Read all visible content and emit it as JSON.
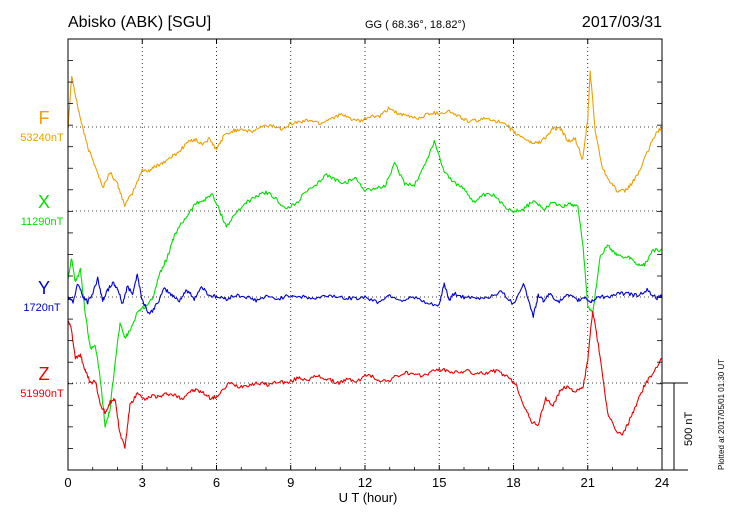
{
  "header": {
    "station": "Abisko (ABK)  [SGU]",
    "coords": "GG ( 68.36°,  18.82°)",
    "date": "2017/03/31"
  },
  "footer": {
    "plotted": "Plotted at 2017/05/01 01:30 UT"
  },
  "colors": {
    "F": "#f0a000",
    "X": "#00e000",
    "Y": "#0000dd",
    "Z": "#ee0000"
  },
  "chart_data": {
    "type": "line",
    "xlabel": "U T (hour)",
    "xlim": [
      0,
      24
    ],
    "xticks": [
      "0",
      "3",
      "6",
      "9",
      "12",
      "15",
      "18",
      "21",
      "24"
    ],
    "grid": "dotted",
    "scale": {
      "label": "500 nT",
      "value": 500
    },
    "series": [
      {
        "name": "F",
        "baseline_label": "53240nT",
        "baseline": 53240,
        "x": [
          0,
          0.15,
          0.3,
          0.5,
          0.8,
          1.1,
          1.4,
          1.7,
          2.0,
          2.3,
          2.6,
          3.0,
          3.3,
          3.6,
          3.9,
          4.2,
          4.5,
          4.8,
          5.1,
          5.4,
          5.7,
          6.0,
          6.3,
          6.7,
          7.0,
          7.4,
          7.8,
          8.2,
          8.6,
          9.0,
          9.4,
          9.8,
          10.2,
          10.6,
          11.0,
          11.4,
          11.8,
          12.2,
          12.6,
          13.0,
          13.4,
          13.8,
          14.2,
          14.6,
          15.0,
          15.4,
          15.8,
          16.2,
          16.6,
          17.0,
          17.4,
          17.8,
          18.1,
          18.4,
          18.7,
          19.0,
          19.3,
          19.6,
          19.9,
          20.2,
          20.5,
          20.8,
          21.0,
          21.1,
          21.3,
          21.6,
          21.9,
          22.2,
          22.5,
          22.8,
          23.1,
          23.4,
          23.7,
          24.0
        ],
        "y": [
          53240,
          53540,
          53420,
          53290,
          53120,
          53020,
          52890,
          52980,
          52910,
          52790,
          52860,
          52990,
          52990,
          53020,
          53040,
          53070,
          53100,
          53150,
          53170,
          53140,
          53170,
          53110,
          53190,
          53220,
          53230,
          53210,
          53240,
          53250,
          53230,
          53260,
          53270,
          53280,
          53260,
          53290,
          53310,
          53290,
          53270,
          53300,
          53300,
          53350,
          53310,
          53300,
          53290,
          53320,
          53320,
          53330,
          53300,
          53270,
          53280,
          53290,
          53270,
          53240,
          53200,
          53180,
          53150,
          53150,
          53180,
          53230,
          53230,
          53160,
          53170,
          53050,
          53290,
          53560,
          53220,
          53000,
          52930,
          52870,
          52870,
          52920,
          52990,
          53090,
          53190,
          53240
        ]
      },
      {
        "name": "X",
        "baseline_label": "11290nT",
        "baseline": 11290,
        "x": [
          0,
          0.15,
          0.3,
          0.5,
          0.7,
          0.9,
          1.1,
          1.3,
          1.5,
          1.7,
          1.9,
          2.1,
          2.3,
          2.5,
          2.8,
          3.1,
          3.4,
          3.7,
          4.0,
          4.3,
          4.6,
          4.9,
          5.2,
          5.5,
          5.8,
          6.1,
          6.4,
          6.8,
          7.2,
          7.6,
          8.0,
          8.4,
          8.8,
          9.2,
          9.6,
          10.0,
          10.4,
          10.8,
          11.2,
          11.6,
          12.0,
          12.4,
          12.8,
          13.2,
          13.6,
          14.0,
          14.4,
          14.8,
          15.2,
          15.6,
          16.0,
          16.4,
          16.8,
          17.2,
          17.6,
          18.0,
          18.4,
          18.8,
          19.2,
          19.6,
          20.0,
          20.3,
          20.6,
          20.8,
          21.0,
          21.2,
          21.5,
          21.8,
          22.1,
          22.4,
          22.7,
          23.0,
          23.3,
          23.6,
          24.0
        ],
        "y": [
          10900,
          11020,
          10880,
          10950,
          10700,
          10500,
          10520,
          10330,
          10050,
          10150,
          10420,
          10640,
          10560,
          10600,
          10710,
          10740,
          10780,
          10930,
          11020,
          11150,
          11220,
          11280,
          11340,
          11350,
          11390,
          11300,
          11200,
          11280,
          11340,
          11370,
          11400,
          11360,
          11300,
          11330,
          11400,
          11430,
          11500,
          11470,
          11450,
          11480,
          11410,
          11420,
          11430,
          11560,
          11450,
          11440,
          11550,
          11690,
          11520,
          11450,
          11420,
          11340,
          11380,
          11380,
          11320,
          11290,
          11300,
          11350,
          11300,
          11340,
          11320,
          11330,
          11320,
          11100,
          10750,
          10700,
          11030,
          11090,
          11050,
          11020,
          11020,
          10980,
          10980,
          11060,
          11070
        ]
      },
      {
        "name": "Y",
        "baseline_label": "1720nT",
        "baseline": 1720,
        "x": [
          0,
          0.2,
          0.4,
          0.6,
          0.8,
          1.0,
          1.2,
          1.4,
          1.6,
          1.8,
          2.0,
          2.2,
          2.4,
          2.6,
          2.8,
          3.0,
          3.3,
          3.6,
          3.9,
          4.2,
          4.5,
          4.8,
          5.1,
          5.4,
          5.7,
          6.0,
          6.4,
          6.8,
          7.2,
          7.6,
          8.0,
          8.5,
          9.0,
          9.5,
          10.0,
          10.5,
          11.0,
          11.5,
          12.0,
          12.5,
          13.0,
          13.5,
          14.0,
          14.5,
          15.0,
          15.2,
          15.4,
          15.6,
          16.0,
          16.5,
          17.0,
          17.5,
          18.0,
          18.4,
          18.8,
          19.0,
          19.2,
          19.5,
          19.8,
          20.2,
          20.6,
          20.9,
          21.1,
          21.4,
          21.8,
          22.2,
          22.6,
          23.0,
          23.4,
          23.8,
          24.0
        ],
        "y": [
          1720,
          1690,
          1800,
          1720,
          1690,
          1740,
          1830,
          1700,
          1760,
          1800,
          1770,
          1680,
          1780,
          1740,
          1850,
          1700,
          1620,
          1680,
          1770,
          1730,
          1700,
          1760,
          1710,
          1780,
          1730,
          1720,
          1710,
          1730,
          1720,
          1700,
          1720,
          1710,
          1730,
          1720,
          1710,
          1730,
          1720,
          1710,
          1720,
          1690,
          1730,
          1700,
          1720,
          1680,
          1670,
          1800,
          1700,
          1740,
          1720,
          1710,
          1720,
          1750,
          1680,
          1800,
          1610,
          1730,
          1700,
          1740,
          1690,
          1730,
          1700,
          1720,
          1690,
          1720,
          1720,
          1740,
          1740,
          1730,
          1760,
          1710,
          1730
        ]
      },
      {
        "name": "Z",
        "baseline_label": "51990nT",
        "baseline": 51990,
        "x": [
          0,
          0.15,
          0.3,
          0.5,
          0.7,
          0.9,
          1.1,
          1.3,
          1.5,
          1.7,
          1.9,
          2.1,
          2.3,
          2.5,
          2.8,
          3.1,
          3.4,
          3.7,
          4.0,
          4.3,
          4.6,
          4.9,
          5.2,
          5.5,
          5.8,
          6.1,
          6.5,
          6.9,
          7.3,
          7.7,
          8.1,
          8.5,
          8.9,
          9.3,
          9.7,
          10.1,
          10.5,
          10.9,
          11.3,
          11.7,
          12.1,
          12.5,
          12.9,
          13.3,
          13.7,
          14.1,
          14.5,
          14.9,
          15.3,
          15.7,
          16.1,
          16.5,
          16.9,
          17.3,
          17.7,
          18.1,
          18.4,
          18.7,
          19.0,
          19.3,
          19.6,
          19.9,
          20.2,
          20.5,
          20.8,
          21.0,
          21.2,
          21.5,
          21.8,
          22.1,
          22.4,
          22.7,
          23.0,
          23.3,
          23.6,
          24.0
        ],
        "y": [
          52350,
          52290,
          52130,
          52150,
          52060,
          51990,
          52000,
          51870,
          51820,
          51880,
          51900,
          51700,
          51620,
          51860,
          51930,
          51890,
          51920,
          51910,
          51930,
          51920,
          51900,
          51940,
          51950,
          51930,
          51900,
          51920,
          51990,
          51970,
          51980,
          51990,
          51980,
          52000,
          51990,
          52020,
          52010,
          52030,
          52010,
          51990,
          52010,
          52000,
          52040,
          52010,
          52000,
          52030,
          52050,
          52030,
          52040,
          52070,
          52060,
          52050,
          52060,
          52040,
          52050,
          52060,
          52030,
          51980,
          51870,
          51770,
          51750,
          51900,
          51860,
          51950,
          51970,
          51940,
          51960,
          52120,
          52410,
          52140,
          51820,
          51720,
          51690,
          51780,
          51880,
          51980,
          52040,
          52130
        ]
      }
    ]
  }
}
